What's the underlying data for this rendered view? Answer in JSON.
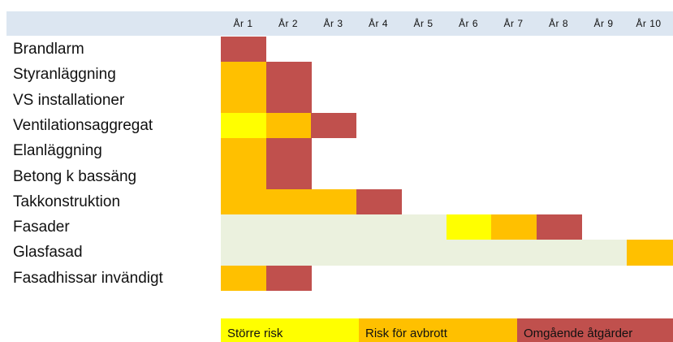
{
  "colors": {
    "background": "#ffffff",
    "header_band": "#dce6f1",
    "ok": "#ebf1de",
    "storre_risk": "#ffff00",
    "risk_avbrott": "#ffc000",
    "omgaende": "#c0504d"
  },
  "chart_data": {
    "type": "heatmap",
    "title": "",
    "x": [
      "År 1",
      "År 2",
      "År 3",
      "År 4",
      "År 5",
      "År 6",
      "År 7",
      "År 8",
      "År 9",
      "År 10"
    ],
    "rows": [
      {
        "name": "Brandlarm",
        "cells": [
          "omgaende",
          "",
          "",
          "",
          "",
          "",
          "",
          "",
          "",
          ""
        ]
      },
      {
        "name": "Styranläggning",
        "cells": [
          "risk_avbrott",
          "omgaende",
          "",
          "",
          "",
          "",
          "",
          "",
          "",
          ""
        ]
      },
      {
        "name": "VS installationer",
        "cells": [
          "risk_avbrott",
          "omgaende",
          "",
          "",
          "",
          "",
          "",
          "",
          "",
          ""
        ]
      },
      {
        "name": "Ventilationsaggregat",
        "cells": [
          "storre_risk",
          "risk_avbrott",
          "omgaende",
          "",
          "",
          "",
          "",
          "",
          "",
          ""
        ]
      },
      {
        "name": "Elanläggning",
        "cells": [
          "risk_avbrott",
          "omgaende",
          "",
          "",
          "",
          "",
          "",
          "",
          "",
          ""
        ]
      },
      {
        "name": "Betong k bassäng",
        "cells": [
          "risk_avbrott",
          "omgaende",
          "",
          "",
          "",
          "",
          "",
          "",
          "",
          ""
        ]
      },
      {
        "name": "Takkonstruktion",
        "cells": [
          "risk_avbrott",
          "risk_avbrott",
          "risk_avbrott",
          "omgaende",
          "",
          "",
          "",
          "",
          "",
          ""
        ]
      },
      {
        "name": "Fasader",
        "cells": [
          "ok",
          "ok",
          "ok",
          "ok",
          "ok",
          "storre_risk",
          "risk_avbrott",
          "omgaende",
          "",
          ""
        ]
      },
      {
        "name": "Glasfasad",
        "cells": [
          "ok",
          "ok",
          "ok",
          "ok",
          "ok",
          "ok",
          "ok",
          "ok",
          "ok",
          "risk_avbrott"
        ]
      },
      {
        "name": "Fasadhissar invändigt",
        "cells": [
          "risk_avbrott",
          "omgaende",
          "",
          "",
          "",
          "",
          "",
          "",
          "",
          ""
        ]
      }
    ],
    "legend": [
      {
        "key": "storre_risk",
        "label": "Större risk"
      },
      {
        "key": "risk_avbrott",
        "label": "Risk för avbrott"
      },
      {
        "key": "omgaende",
        "label": "Omgående åtgärder"
      }
    ]
  }
}
